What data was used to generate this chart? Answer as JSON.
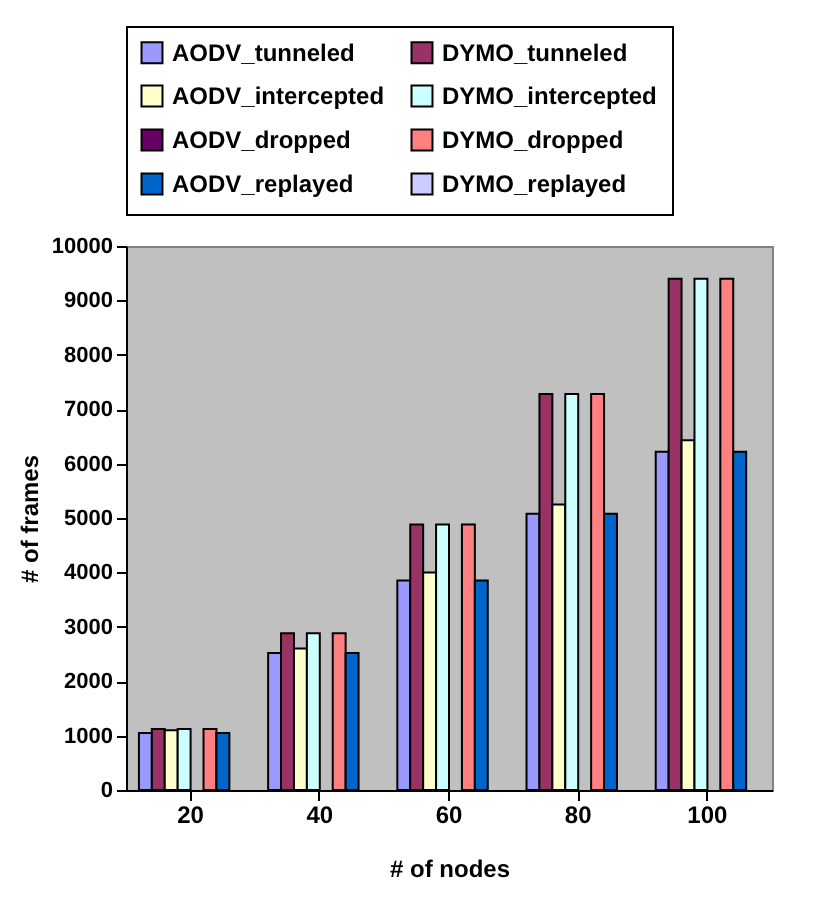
{
  "chart_data": {
    "type": "bar",
    "xlabel": "# of nodes",
    "ylabel": "# of frames",
    "categories": [
      "20",
      "40",
      "60",
      "80",
      "100"
    ],
    "series": [
      {
        "name": "AODV_tunneled",
        "color": "#9999ff",
        "values": [
          1050,
          2520,
          3850,
          5080,
          6220
        ]
      },
      {
        "name": "DYMO_tunneled",
        "color": "#993366",
        "values": [
          1120,
          2880,
          4880,
          7280,
          9400
        ]
      },
      {
        "name": "AODV_intercepted",
        "color": "#ffffcc",
        "values": [
          1100,
          2600,
          4000,
          5250,
          6430
        ]
      },
      {
        "name": "DYMO_intercepted",
        "color": "#ccffff",
        "values": [
          1120,
          2880,
          4880,
          7280,
          9400
        ]
      },
      {
        "name": "AODV_dropped",
        "color": "#660066",
        "values": [
          0,
          0,
          0,
          0,
          0
        ]
      },
      {
        "name": "DYMO_dropped",
        "color": "#ff8080",
        "values": [
          1120,
          2880,
          4880,
          7280,
          9400
        ]
      },
      {
        "name": "AODV_replayed",
        "color": "#0066cc",
        "values": [
          1050,
          2520,
          3850,
          5080,
          6220
        ]
      },
      {
        "name": "DYMO_replayed",
        "color": "#ccccff",
        "values": [
          0,
          0,
          0,
          0,
          0
        ]
      }
    ],
    "ylim": [
      0,
      10000
    ],
    "yticks": [
      0,
      1000,
      2000,
      3000,
      4000,
      5000,
      6000,
      7000,
      8000,
      9000,
      10000
    ],
    "grid": false,
    "legend": "top"
  }
}
